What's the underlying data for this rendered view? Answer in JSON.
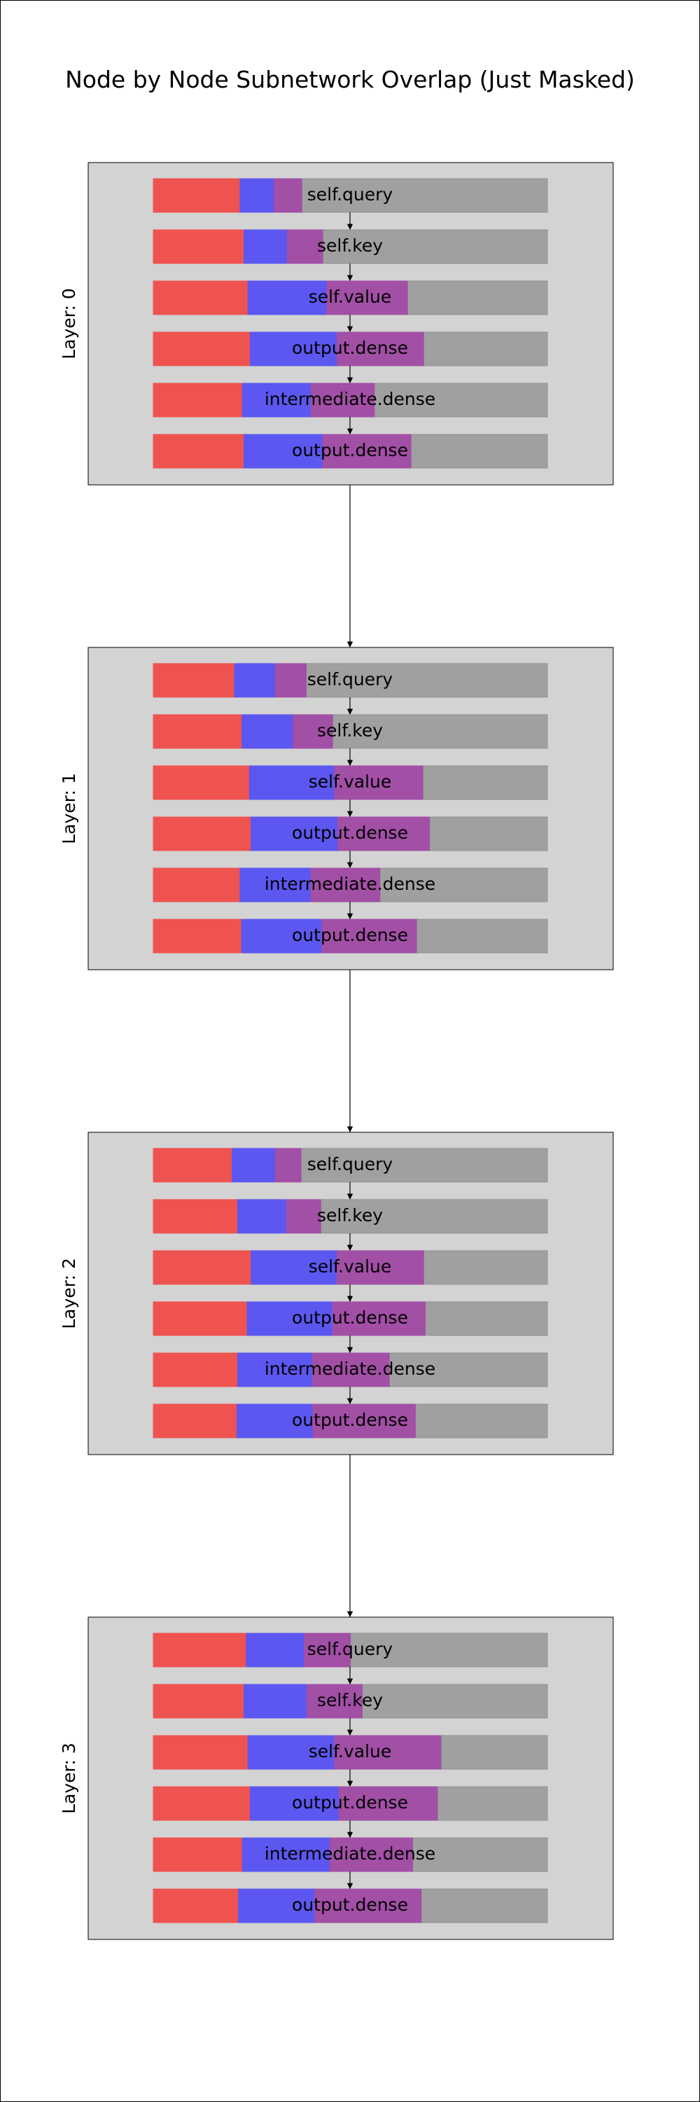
{
  "chart_data": {
    "type": "bar",
    "title": "Node by Node Subnetwork Overlap (Just Masked)",
    "colors": {
      "red": "#ef5350",
      "blue": "#5b57f0",
      "purple": "#a24fa6",
      "gray": "#a0a0a0",
      "panel": "#d3d3d3"
    },
    "layers": [
      {
        "label": "Layer: 0",
        "nodes": [
          {
            "label": "self.query",
            "red": 0.22,
            "blue": 0.087,
            "purple": 0.07
          },
          {
            "label": "self.key",
            "red": 0.23,
            "blue": 0.11,
            "purple": 0.09
          },
          {
            "label": "self.value",
            "red": 0.24,
            "blue": 0.2,
            "purple": 0.205
          },
          {
            "label": "output.dense",
            "red": 0.246,
            "blue": 0.22,
            "purple": 0.22
          },
          {
            "label": "intermediate.dense",
            "red": 0.226,
            "blue": 0.174,
            "purple": 0.161
          },
          {
            "label": "output.dense",
            "red": 0.23,
            "blue": 0.2,
            "purple": 0.224
          }
        ]
      },
      {
        "label": "Layer: 1",
        "nodes": [
          {
            "label": "self.query",
            "red": 0.206,
            "blue": 0.104,
            "purple": 0.078
          },
          {
            "label": "self.key",
            "red": 0.225,
            "blue": 0.13,
            "purple": 0.1
          },
          {
            "label": "self.value",
            "red": 0.244,
            "blue": 0.216,
            "purple": 0.224
          },
          {
            "label": "output.dense",
            "red": 0.248,
            "blue": 0.22,
            "purple": 0.233
          },
          {
            "label": "intermediate.dense",
            "red": 0.22,
            "blue": 0.18,
            "purple": 0.175
          },
          {
            "label": "output.dense",
            "red": 0.224,
            "blue": 0.204,
            "purple": 0.24
          }
        ]
      },
      {
        "label": "Layer: 2",
        "nodes": [
          {
            "label": "self.query",
            "red": 0.2,
            "blue": 0.11,
            "purple": 0.065
          },
          {
            "label": "self.key",
            "red": 0.214,
            "blue": 0.124,
            "purple": 0.087
          },
          {
            "label": "self.value",
            "red": 0.248,
            "blue": 0.218,
            "purple": 0.22
          },
          {
            "label": "output.dense",
            "red": 0.238,
            "blue": 0.217,
            "purple": 0.235
          },
          {
            "label": "intermediate.dense",
            "red": 0.214,
            "blue": 0.19,
            "purple": 0.195
          },
          {
            "label": "output.dense",
            "red": 0.212,
            "blue": 0.193,
            "purple": 0.26
          }
        ]
      },
      {
        "label": "Layer: 3",
        "nodes": [
          {
            "label": "self.query",
            "red": 0.236,
            "blue": 0.147,
            "purple": 0.117
          },
          {
            "label": "self.key",
            "red": 0.23,
            "blue": 0.16,
            "purple": 0.14
          },
          {
            "label": "self.value",
            "red": 0.24,
            "blue": 0.22,
            "purple": 0.27
          },
          {
            "label": "output.dense",
            "red": 0.246,
            "blue": 0.225,
            "purple": 0.25
          },
          {
            "label": "intermediate.dense",
            "red": 0.226,
            "blue": 0.222,
            "purple": 0.21
          },
          {
            "label": "output.dense",
            "red": 0.216,
            "blue": 0.194,
            "purple": 0.27
          }
        ]
      }
    ]
  }
}
